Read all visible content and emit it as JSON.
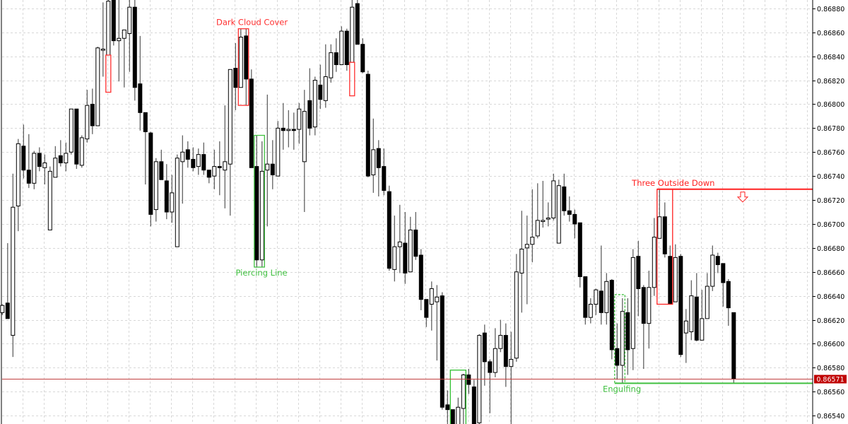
{
  "chart_data": {
    "type": "candlestick",
    "title": "",
    "xlabel": "",
    "ylabel": "",
    "ylim": [
      0.86533,
      0.86887
    ],
    "grid": true,
    "y_ticks": [
      "0.86880",
      "0.86860",
      "0.86840",
      "0.86820",
      "0.86800",
      "0.86780",
      "0.86760",
      "0.86740",
      "0.86720",
      "0.86700",
      "0.86680",
      "0.86660",
      "0.86640",
      "0.86620",
      "0.86600",
      "0.86580",
      "0.86560",
      "0.86540"
    ],
    "candle_format": [
      "open",
      "high",
      "low",
      "close"
    ],
    "candles": [
      [
        0.86626,
        0.86633,
        0.86624,
        0.86632
      ],
      [
        0.86634,
        0.86684,
        0.86621,
        0.86621
      ],
      [
        0.86607,
        0.86742,
        0.86589,
        0.86714
      ],
      [
        0.86715,
        0.86771,
        0.86694,
        0.86767
      ],
      [
        0.86765,
        0.86783,
        0.86738,
        0.86745
      ],
      [
        0.86745,
        0.86775,
        0.8673,
        0.86734
      ],
      [
        0.86734,
        0.86761,
        0.86729,
        0.86759
      ],
      [
        0.86759,
        0.86764,
        0.86744,
        0.86748
      ],
      [
        0.86747,
        0.86758,
        0.86733,
        0.86751
      ],
      [
        0.86695,
        0.86748,
        0.86695,
        0.86744
      ],
      [
        0.86739,
        0.86765,
        0.86739,
        0.86755
      ],
      [
        0.86757,
        0.8677,
        0.86748,
        0.86751
      ],
      [
        0.86751,
        0.86768,
        0.86744,
        0.86759
      ],
      [
        0.8676,
        0.86796,
        0.86758,
        0.86796
      ],
      [
        0.86796,
        0.86796,
        0.86746,
        0.8675
      ],
      [
        0.86749,
        0.86774,
        0.86747,
        0.86772
      ],
      [
        0.86771,
        0.86812,
        0.86768,
        0.86799
      ],
      [
        0.868,
        0.86813,
        0.86775,
        0.86782
      ],
      [
        0.86782,
        0.86848,
        0.86782,
        0.86847
      ],
      [
        0.86845,
        0.86885,
        0.86823,
        0.86846
      ],
      [
        0.86841,
        0.86893,
        0.86841,
        0.86886
      ],
      [
        0.8689,
        0.86896,
        0.86849,
        0.86853
      ],
      [
        0.86853,
        0.86887,
        0.86819,
        0.86855
      ],
      [
        0.86855,
        0.86862,
        0.86814,
        0.86862
      ],
      [
        0.86859,
        0.86887,
        0.86827,
        0.86881
      ],
      [
        0.86881,
        0.86887,
        0.86803,
        0.86814
      ],
      [
        0.86817,
        0.86857,
        0.86778,
        0.86793
      ],
      [
        0.86793,
        0.86793,
        0.86733,
        0.86777
      ],
      [
        0.86776,
        0.86777,
        0.86698,
        0.86708
      ],
      [
        0.86712,
        0.86755,
        0.86702,
        0.86752
      ],
      [
        0.86752,
        0.86762,
        0.86737,
        0.86737
      ],
      [
        0.86736,
        0.8675,
        0.86704,
        0.8671
      ],
      [
        0.8671,
        0.86741,
        0.86701,
        0.86726
      ],
      [
        0.86681,
        0.86758,
        0.86681,
        0.86755
      ],
      [
        0.86752,
        0.86774,
        0.86717,
        0.8676
      ],
      [
        0.86762,
        0.86769,
        0.86747,
        0.86754
      ],
      [
        0.86754,
        0.86764,
        0.86744,
        0.86747
      ],
      [
        0.86748,
        0.86763,
        0.86741,
        0.86758
      ],
      [
        0.86758,
        0.86768,
        0.86741,
        0.86745
      ],
      [
        0.86745,
        0.86745,
        0.86734,
        0.86739
      ],
      [
        0.8674,
        0.86762,
        0.86729,
        0.86748
      ],
      [
        0.86748,
        0.86769,
        0.86724,
        0.86747
      ],
      [
        0.86745,
        0.86799,
        0.86713,
        0.86752
      ],
      [
        0.8675,
        0.86829,
        0.86707,
        0.86829
      ],
      [
        0.8683,
        0.86851,
        0.86795,
        0.86814
      ],
      [
        0.86814,
        0.86863,
        0.86814,
        0.86856
      ],
      [
        0.86857,
        0.86863,
        0.86799,
        0.86821
      ],
      [
        0.86821,
        0.86829,
        0.86747,
        0.86747
      ],
      [
        0.86748,
        0.86774,
        0.86664,
        0.8667
      ],
      [
        0.8667,
        0.86769,
        0.86664,
        0.86744
      ],
      [
        0.86745,
        0.86808,
        0.86698,
        0.8675
      ],
      [
        0.8675,
        0.8677,
        0.86729,
        0.86741
      ],
      [
        0.8674,
        0.86786,
        0.8674,
        0.8678
      ],
      [
        0.8678,
        0.86801,
        0.86762,
        0.86778
      ],
      [
        0.86778,
        0.86795,
        0.86764,
        0.86779
      ],
      [
        0.86779,
        0.86793,
        0.86762,
        0.86778
      ],
      [
        0.86779,
        0.86801,
        0.86767,
        0.86796
      ],
      [
        0.86752,
        0.86812,
        0.8671,
        0.86794
      ],
      [
        0.86803,
        0.8683,
        0.86774,
        0.8678
      ],
      [
        0.86781,
        0.86823,
        0.86774,
        0.8682
      ],
      [
        0.86816,
        0.86833,
        0.86796,
        0.86804
      ],
      [
        0.86803,
        0.8685,
        0.86797,
        0.86823
      ],
      [
        0.86822,
        0.8685,
        0.86818,
        0.86843
      ],
      [
        0.86843,
        0.86855,
        0.86827,
        0.86833
      ],
      [
        0.86833,
        0.86865,
        0.86833,
        0.86861
      ],
      [
        0.86861,
        0.86863,
        0.86828,
        0.86833
      ],
      [
        0.86835,
        0.86887,
        0.86835,
        0.86881
      ],
      [
        0.86884,
        0.86887,
        0.8685,
        0.8685
      ],
      [
        0.8685,
        0.86855,
        0.86826,
        0.86827
      ],
      [
        0.86825,
        0.86828,
        0.86739,
        0.8674
      ],
      [
        0.86741,
        0.86788,
        0.86726,
        0.86762
      ],
      [
        0.86763,
        0.8677,
        0.86723,
        0.86747
      ],
      [
        0.86748,
        0.86763,
        0.86724,
        0.86728
      ],
      [
        0.86727,
        0.86732,
        0.86661,
        0.86663
      ],
      [
        0.86662,
        0.86707,
        0.86652,
        0.86681
      ],
      [
        0.86681,
        0.86716,
        0.86659,
        0.86685
      ],
      [
        0.86684,
        0.8671,
        0.8665,
        0.86659
      ],
      [
        0.8666,
        0.86706,
        0.8666,
        0.86695
      ],
      [
        0.86695,
        0.8671,
        0.8667,
        0.86673
      ],
      [
        0.86674,
        0.86679,
        0.86628,
        0.86637
      ],
      [
        0.86637,
        0.86637,
        0.86614,
        0.86622
      ],
      [
        0.86633,
        0.86652,
        0.86611,
        0.86646
      ],
      [
        0.86635,
        0.86649,
        0.86586,
        0.86639
      ],
      [
        0.8664,
        0.86643,
        0.86545,
        0.86547
      ],
      [
        0.86549,
        0.86561,
        0.8653,
        0.86545
      ],
      [
        0.86545,
        0.86545,
        0.86527,
        0.8653
      ],
      [
        0.8653,
        0.86555,
        0.86527,
        0.86547
      ],
      [
        0.86546,
        0.86575,
        0.86533,
        0.86574
      ],
      [
        0.86574,
        0.86579,
        0.86558,
        0.86566
      ],
      [
        0.86564,
        0.8657,
        0.86527,
        0.8653
      ],
      [
        0.86534,
        0.86608,
        0.86533,
        0.86607
      ],
      [
        0.86609,
        0.86616,
        0.86565,
        0.86585
      ],
      [
        0.86585,
        0.86587,
        0.86542,
        0.86576
      ],
      [
        0.86576,
        0.86613,
        0.86572,
        0.86596
      ],
      [
        0.86596,
        0.8662,
        0.86593,
        0.86607
      ],
      [
        0.86607,
        0.86617,
        0.86564,
        0.86581
      ],
      [
        0.86581,
        0.8661,
        0.8653,
        0.86587
      ],
      [
        0.86588,
        0.86675,
        0.86585,
        0.8666
      ],
      [
        0.86659,
        0.86711,
        0.86626,
        0.86679
      ],
      [
        0.8668,
        0.86707,
        0.86633,
        0.86683
      ],
      [
        0.86683,
        0.86729,
        0.86668,
        0.86689
      ],
      [
        0.8669,
        0.86734,
        0.86688,
        0.86703
      ],
      [
        0.86702,
        0.86736,
        0.86697,
        0.86703
      ],
      [
        0.86704,
        0.86718,
        0.86698,
        0.86705
      ],
      [
        0.86705,
        0.86742,
        0.86703,
        0.86736
      ],
      [
        0.86684,
        0.86737,
        0.86684,
        0.86732
      ],
      [
        0.86731,
        0.86742,
        0.86707,
        0.86711
      ],
      [
        0.86711,
        0.86723,
        0.86702,
        0.86708
      ],
      [
        0.86708,
        0.86712,
        0.86688,
        0.867
      ],
      [
        0.86701,
        0.86701,
        0.86647,
        0.86656
      ],
      [
        0.86656,
        0.86656,
        0.86616,
        0.86622
      ],
      [
        0.86622,
        0.86638,
        0.86617,
        0.86633
      ],
      [
        0.86633,
        0.86646,
        0.86624,
        0.86645
      ],
      [
        0.86644,
        0.86682,
        0.86616,
        0.86626
      ],
      [
        0.86626,
        0.86659,
        0.86616,
        0.86652
      ],
      [
        0.86653,
        0.86654,
        0.86587,
        0.86595
      ],
      [
        0.86596,
        0.86617,
        0.8657,
        0.86582
      ],
      [
        0.86582,
        0.86638,
        0.86567,
        0.86627
      ],
      [
        0.86626,
        0.86638,
        0.86574,
        0.86595
      ],
      [
        0.86596,
        0.86679,
        0.86578,
        0.86672
      ],
      [
        0.86673,
        0.86686,
        0.86623,
        0.86646
      ],
      [
        0.86647,
        0.86649,
        0.86579,
        0.86617
      ],
      [
        0.86617,
        0.86661,
        0.86596,
        0.86647
      ],
      [
        0.86647,
        0.86705,
        0.8664,
        0.86689
      ],
      [
        0.86688,
        0.86729,
        0.86688,
        0.86706
      ],
      [
        0.86706,
        0.86718,
        0.86672,
        0.86675
      ],
      [
        0.86673,
        0.86682,
        0.86633,
        0.86633
      ],
      [
        0.86635,
        0.86683,
        0.86635,
        0.86672
      ],
      [
        0.86673,
        0.86675,
        0.86589,
        0.86591
      ],
      [
        0.86609,
        0.86629,
        0.86584,
        0.86619
      ],
      [
        0.8661,
        0.86653,
        0.86603,
        0.8664
      ],
      [
        0.86639,
        0.86659,
        0.86602,
        0.86603
      ],
      [
        0.86603,
        0.86645,
        0.86603,
        0.86621
      ],
      [
        0.86621,
        0.86659,
        0.86621,
        0.86648
      ],
      [
        0.86648,
        0.86682,
        0.86644,
        0.86674
      ],
      [
        0.86673,
        0.86676,
        0.86659,
        0.86666
      ],
      [
        0.86667,
        0.86667,
        0.86631,
        0.86651
      ],
      [
        0.86652,
        0.86654,
        0.86615,
        0.8663
      ],
      [
        0.86626,
        0.86626,
        0.86567,
        0.86571
      ]
    ],
    "current_price": {
      "label": "0.86571",
      "value": 0.86571,
      "color": "#c00000"
    },
    "patterns": [
      {
        "label": "",
        "color": "#ff3030",
        "from": 20,
        "to": 20,
        "high": 0.86841,
        "low": 0.8681,
        "label_position": "none"
      },
      {
        "label": "Dark Cloud Cover",
        "color": "#ff3030",
        "from": 45,
        "to": 46,
        "high": 0.86863,
        "low": 0.86799,
        "label_position": "above"
      },
      {
        "label": "Piercing Line",
        "color": "#40c040",
        "from": 48,
        "to": 49,
        "high": 0.86774,
        "low": 0.86664,
        "label_position": "below"
      },
      {
        "label": "",
        "color": "#ff3030",
        "from": 66,
        "to": 66,
        "high": 0.86835,
        "low": 0.86807,
        "label_position": "none"
      },
      {
        "label": "",
        "color": "#30c030",
        "from": 85,
        "to": 87,
        "high": 0.86578,
        "low": 0.86527,
        "label_position": "none"
      },
      {
        "label": "Engulfing",
        "color": "#40c040",
        "from": 116,
        "to": 117,
        "high": 0.86641,
        "low": 0.86567,
        "label_position": "below",
        "extend_level": 0.86567,
        "dashed": true
      },
      {
        "label": "Three Outside Down",
        "color": "#ff2020",
        "from": 124,
        "to": 126,
        "high": 0.86729,
        "low": 0.86633,
        "label_position": "above",
        "extend_level": 0.86729,
        "signal": "arrow-down"
      }
    ],
    "colors": {
      "bull_body": "#ffffff",
      "bear_body": "#000000",
      "grid": "#d8d8d8",
      "price_line": "#c04040"
    }
  }
}
